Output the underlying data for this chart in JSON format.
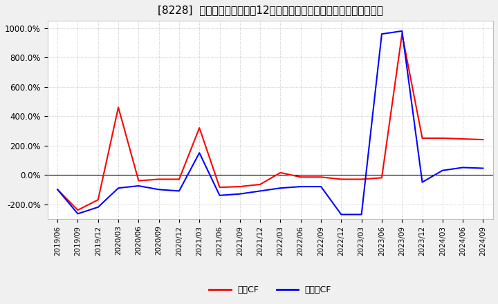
{
  "title": "[8228]  キャッシュフローの12か月移動合計の対前年同期増減率の推移",
  "title_fontsize": 11,
  "legend_labels": [
    "営業CF",
    "フリーCF"
  ],
  "legend_colors": [
    "#ff0000",
    "#0000ff"
  ],
  "ylim": [
    -300,
    1050
  ],
  "yticks": [
    -200,
    0,
    200,
    400,
    600,
    800,
    1000
  ],
  "ytick_labels": [
    "-200.0%",
    "0.0%",
    "200.0%",
    "400.0%",
    "600.0%",
    "800.0%",
    "1000.0%"
  ],
  "background_color": "#f0f0f0",
  "plot_background": "#ffffff",
  "x_dates": [
    "2019/06",
    "2019/09",
    "2019/12",
    "2020/03",
    "2020/06",
    "2020/09",
    "2020/12",
    "2021/03",
    "2021/06",
    "2021/09",
    "2021/12",
    "2022/03",
    "2022/06",
    "2022/09",
    "2022/12",
    "2023/03",
    "2023/06",
    "2023/09",
    "2023/12",
    "2024/03",
    "2024/06",
    "2024/09"
  ],
  "operating_cf": [
    -100,
    -240,
    -170,
    460,
    -40,
    -30,
    -30,
    320,
    -85,
    -80,
    -65,
    15,
    -15,
    -15,
    -30,
    -30,
    -20,
    960,
    250,
    250,
    245,
    240
  ],
  "free_cf": [
    -100,
    -265,
    -220,
    -90,
    -75,
    -100,
    -110,
    150,
    -140,
    -130,
    -110,
    -90,
    -80,
    -80,
    -270,
    -270,
    960,
    980,
    -50,
    30,
    50,
    45
  ]
}
